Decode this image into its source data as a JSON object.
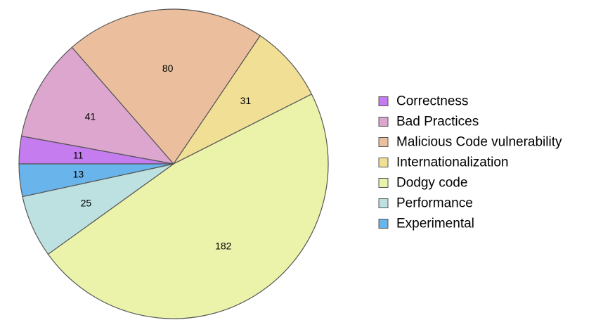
{
  "chart_data": {
    "type": "pie",
    "title": "",
    "slices": [
      {
        "label": "Correctness",
        "value": 11,
        "color": "#c57cee"
      },
      {
        "label": "Bad Practices",
        "value": 41,
        "color": "#dca6ce"
      },
      {
        "label": "Malicious Code vulnerability",
        "value": 80,
        "color": "#ebbf9e"
      },
      {
        "label": "Internationalization",
        "value": 31,
        "color": "#f2df96"
      },
      {
        "label": "Dodgy code",
        "value": 182,
        "color": "#ebf3ab"
      },
      {
        "label": "Performance",
        "value": 25,
        "color": "#bde1e0"
      },
      {
        "label": "Experimental",
        "value": 13,
        "color": "#6ab4ec"
      }
    ],
    "start_angle": "9 o'clock, clockwise",
    "legend_position": "right",
    "border_color": "#555555"
  }
}
